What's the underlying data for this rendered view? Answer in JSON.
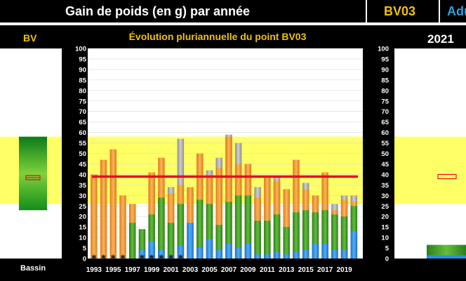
{
  "header": {
    "title": "Gain de poids (en g) par année",
    "point_code": "BV03",
    "tab_label": "Adu"
  },
  "left_panel": {
    "title": "BV",
    "bar_label": "Bassin"
  },
  "right_panel": {
    "year": "2021"
  },
  "chart_data": {
    "type": "bar",
    "title": "Évolution pluriannuelle du point BV03",
    "ylim": [
      0,
      100
    ],
    "yticks": [
      0,
      5,
      10,
      15,
      20,
      25,
      30,
      35,
      40,
      45,
      50,
      55,
      60,
      65,
      70,
      75,
      80,
      85,
      90,
      95,
      100
    ],
    "x": [
      1993,
      1994,
      1995,
      1996,
      1997,
      1998,
      1999,
      2000,
      2001,
      2002,
      2003,
      2004,
      2005,
      2006,
      2007,
      2008,
      2009,
      2010,
      2011,
      2012,
      2013,
      2014,
      2015,
      2016,
      2017,
      2018,
      2019,
      2020
    ],
    "xtick_labels": [
      "1993",
      "1995",
      "1997",
      "1999",
      "2001",
      "2003",
      "2005",
      "2007",
      "2009",
      "2011",
      "2013",
      "2015",
      "2017",
      "2019"
    ],
    "reference_line": 39,
    "reference_band": [
      26,
      58
    ],
    "bars": {
      "blue": [
        0,
        0,
        0,
        0,
        0,
        4,
        8,
        4,
        1,
        6,
        17,
        5,
        9,
        4,
        7,
        5,
        7,
        2,
        2,
        3,
        2,
        3,
        4,
        7,
        7,
        4,
        4,
        13
      ],
      "green": [
        0,
        0,
        0,
        0,
        17,
        14,
        21,
        29,
        17,
        26,
        0,
        28,
        26,
        16,
        27,
        30,
        30,
        18,
        18,
        21,
        15,
        22,
        23,
        22,
        23,
        21,
        20,
        25
      ],
      "orange": [
        40,
        47,
        52,
        30,
        26,
        0,
        41,
        48,
        31,
        35,
        34,
        50,
        39,
        43,
        58,
        45,
        45,
        29,
        39,
        37,
        33,
        47,
        33,
        30,
        41,
        23,
        28,
        27
      ],
      "gray": [
        0,
        0,
        0,
        0,
        0,
        0,
        0,
        0,
        34,
        57,
        0,
        0,
        42,
        48,
        59,
        55,
        0,
        34,
        0,
        39,
        0,
        0,
        36,
        0,
        0,
        26,
        30,
        30
      ]
    },
    "missing_markers": [
      "1993",
      "1994",
      "1995",
      "1996",
      "1998",
      "1999",
      "2000",
      "2001",
      "2002"
    ],
    "left_bar": {
      "range": [
        23,
        58
      ],
      "mean": 38.5
    },
    "right_bar": {
      "value": 6.5,
      "mean": 39
    },
    "colors": {
      "band": "#ffff66",
      "reference": "#e8101c",
      "orange": "#f39a33",
      "green": "#3f9e2c",
      "blue": "#2c8fe0",
      "gray": "#a8a8a8",
      "title": "#f2c200"
    }
  }
}
